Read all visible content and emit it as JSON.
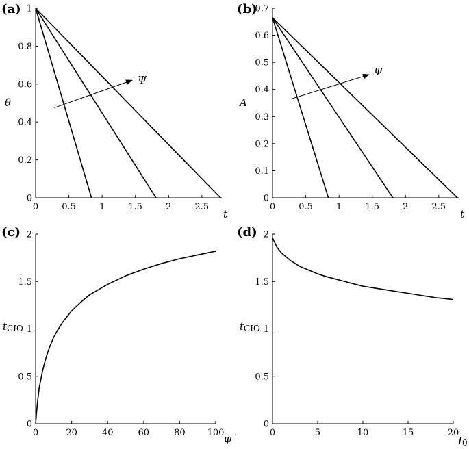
{
  "chart_data": [
    {
      "panel_label": "(a)",
      "type": "line",
      "xlabel": "t",
      "ylabel": "θ",
      "xlim": [
        0,
        2.8
      ],
      "ylim": [
        0,
        1
      ],
      "xticks": [
        0,
        0.5,
        1,
        1.5,
        2,
        2.5
      ],
      "xtick_labels": [
        "0",
        "0.5",
        "1",
        "1.5",
        "2",
        "2.5"
      ],
      "yticks": [
        0,
        0.2,
        0.4,
        0.6,
        0.8,
        1
      ],
      "ytick_labels": [
        "0",
        "0.2",
        "0.4",
        "0.6",
        "0.8",
        "1"
      ],
      "series": [
        {
          "x": [
            0,
            0.84
          ],
          "y": [
            1,
            0
          ]
        },
        {
          "x": [
            0,
            1.81
          ],
          "y": [
            1,
            0
          ]
        },
        {
          "x": [
            0,
            2.78
          ],
          "y": [
            1,
            0
          ]
        }
      ],
      "annotation": {
        "text": "Ψ",
        "arrow_from": [
          0.28,
          0.475
        ],
        "arrow_to": [
          1.45,
          0.62
        ]
      }
    },
    {
      "panel_label": "(b)",
      "type": "line",
      "xlabel": "t",
      "ylabel": "A",
      "xlim": [
        0,
        2.8
      ],
      "ylim": [
        0,
        0.7
      ],
      "xticks": [
        0,
        0.5,
        1,
        1.5,
        2,
        2.5
      ],
      "xtick_labels": [
        "0",
        "0.5",
        "1",
        "1.5",
        "2",
        "2.5"
      ],
      "yticks": [
        0,
        0.1,
        0.2,
        0.3,
        0.4,
        0.5,
        0.6,
        0.7
      ],
      "ytick_labels": [
        "0",
        "0.1",
        "0.2",
        "0.3",
        "0.4",
        "0.5",
        "0.6",
        "0.7"
      ],
      "series": [
        {
          "x": [
            0,
            0.84
          ],
          "y": [
            0.665,
            0
          ]
        },
        {
          "x": [
            0,
            1.81
          ],
          "y": [
            0.665,
            0
          ]
        },
        {
          "x": [
            0,
            2.78
          ],
          "y": [
            0.665,
            0
          ]
        }
      ],
      "annotation": {
        "text": "Ψ",
        "arrow_from": [
          0.28,
          0.365
        ],
        "arrow_to": [
          1.45,
          0.455
        ]
      }
    },
    {
      "panel_label": "(c)",
      "type": "line",
      "xlabel": "Ψ",
      "ylabel": "t",
      "ylabel_sub": "CIO",
      "xlim": [
        0,
        100
      ],
      "ylim": [
        0,
        2
      ],
      "xticks": [
        0,
        20,
        40,
        60,
        80,
        100
      ],
      "xtick_labels": [
        "0",
        "20",
        "40",
        "60",
        "80",
        "100"
      ],
      "yticks": [
        0,
        0.5,
        1,
        1.5,
        2
      ],
      "ytick_labels": [
        "0",
        "0.5",
        "1",
        "1.5",
        "2"
      ],
      "series": [
        {
          "x": [
            0,
            1,
            2,
            4,
            6,
            8,
            10,
            12,
            15,
            20,
            25,
            30,
            40,
            50,
            60,
            70,
            80,
            90,
            100
          ],
          "y": [
            0,
            0.22,
            0.38,
            0.57,
            0.71,
            0.82,
            0.91,
            0.98,
            1.07,
            1.19,
            1.28,
            1.36,
            1.47,
            1.56,
            1.63,
            1.69,
            1.74,
            1.78,
            1.82
          ]
        }
      ]
    },
    {
      "panel_label": "(d)",
      "type": "line",
      "xlabel": "I",
      "xlabel_sub": "0",
      "ylabel": "t",
      "ylabel_sub": "CIO",
      "xlim": [
        0,
        20
      ],
      "ylim": [
        0,
        2
      ],
      "xticks": [
        0,
        5,
        10,
        15,
        20
      ],
      "xtick_labels": [
        "0",
        "5",
        "10",
        "15",
        "20"
      ],
      "yticks": [
        0,
        0.5,
        1,
        1.5,
        2
      ],
      "ytick_labels": [
        "0",
        "0.5",
        "1",
        "1.5",
        "2"
      ],
      "series": [
        {
          "x": [
            0,
            0.5,
            1,
            2,
            3,
            4,
            5,
            6,
            8,
            10,
            12,
            14,
            16,
            18,
            20
          ],
          "y": [
            1.96,
            1.86,
            1.8,
            1.72,
            1.66,
            1.62,
            1.58,
            1.55,
            1.5,
            1.45,
            1.42,
            1.39,
            1.36,
            1.33,
            1.31
          ]
        }
      ]
    }
  ]
}
